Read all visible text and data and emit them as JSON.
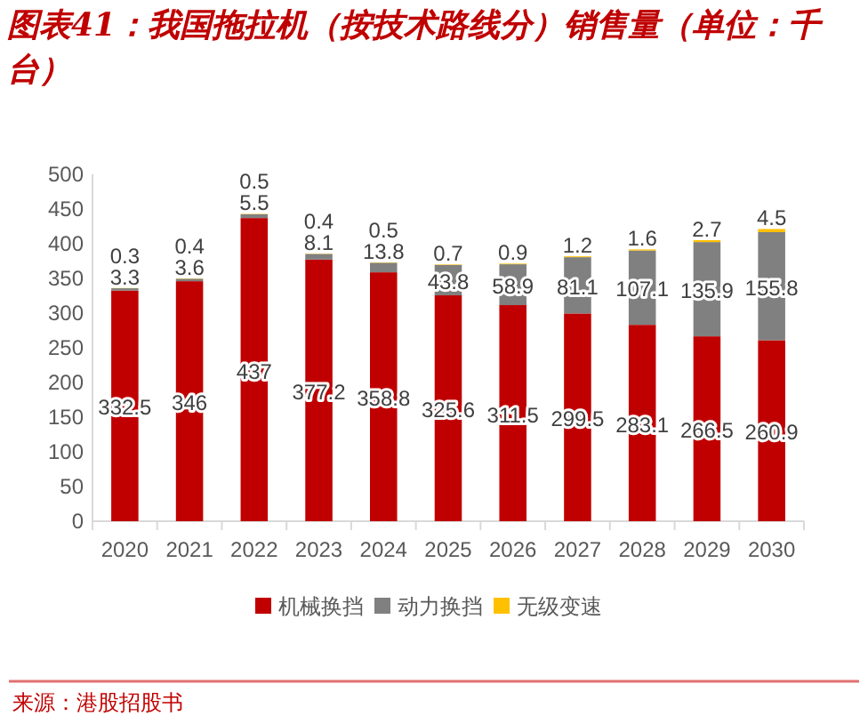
{
  "chart_data": {
    "type": "bar",
    "title": "图表41：我国拖拉机（按技术路线分）销售量（单位：千台）",
    "stacked": true,
    "categories": [
      "2020",
      "2021",
      "2022",
      "2023",
      "2024",
      "2025",
      "2026",
      "2027",
      "2028",
      "2029",
      "2030"
    ],
    "series": [
      {
        "name": "机械换挡",
        "color": "#c00000",
        "values": [
          332.5,
          346,
          437,
          377.2,
          358.8,
          325.6,
          311.5,
          299.5,
          283.1,
          266.5,
          260.9
        ]
      },
      {
        "name": "动力换挡",
        "color": "#808080",
        "values": [
          3.3,
          3.6,
          5.5,
          8.1,
          13.8,
          43.8,
          58.9,
          81.1,
          107.1,
          135.9,
          155.8
        ]
      },
      {
        "name": "无级变速",
        "color": "#ffc000",
        "values": [
          0.3,
          0.4,
          0.5,
          0.4,
          0.5,
          0.7,
          0.9,
          1.2,
          1.6,
          2.7,
          4.5
        ]
      }
    ],
    "ylim": [
      0,
      500
    ],
    "yticks": [
      0,
      50,
      100,
      150,
      200,
      250,
      300,
      350,
      400,
      450,
      500
    ],
    "data_labels": true,
    "legend": "bottom",
    "grid": false,
    "annotations": [
      "来源：港股招股书"
    ]
  }
}
